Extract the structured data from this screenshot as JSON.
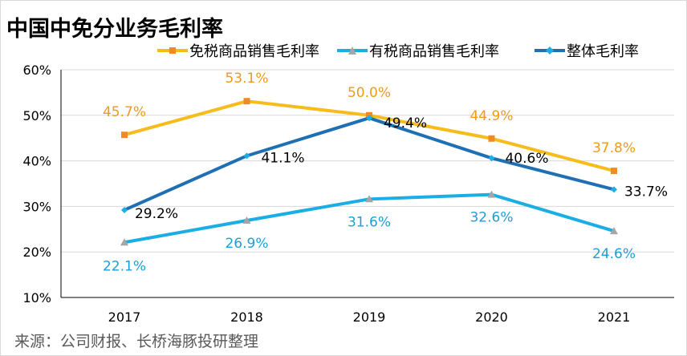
{
  "title": "中国中免分业务毛利率",
  "source": "来源：公司财报、长桥海豚投研整理",
  "colors": {
    "duty_free": "#F5BC1C",
    "duty_free_marker": "#F08A24",
    "duty_free_label": "#F09A1C",
    "dutiable": "#1AAEE5",
    "dutiable_marker": "#A6A6A6",
    "dutiable_label": "#1A9FD6",
    "overall": "#1F6FB4",
    "overall_label": "#000000",
    "grid": "#d9d9d9",
    "axis": "#000000"
  },
  "chart_data": {
    "type": "line",
    "title": "中国中免分业务毛利率",
    "xlabel": "",
    "ylabel": "",
    "x": [
      "2017",
      "2018",
      "2019",
      "2020",
      "2021"
    ],
    "ylim": [
      10,
      60
    ],
    "yticks": [
      10,
      20,
      30,
      40,
      50,
      60
    ],
    "ytick_labels": [
      "10%",
      "20%",
      "30%",
      "40%",
      "50%",
      "60%"
    ],
    "grid": true,
    "legend_position": "top",
    "series": [
      {
        "name": "免税商品销售毛利率",
        "values": [
          45.7,
          53.1,
          50.0,
          44.9,
          37.8
        ],
        "labels": [
          "45.7%",
          "53.1%",
          "50.0%",
          "44.9%",
          "37.8%"
        ],
        "marker": "square"
      },
      {
        "name": "有税商品销售毛利率",
        "values": [
          22.1,
          26.9,
          31.6,
          32.6,
          24.6
        ],
        "labels": [
          "22.1%",
          "26.9%",
          "31.6%",
          "32.6%",
          "24.6%"
        ],
        "marker": "triangle"
      },
      {
        "name": "整体毛利率",
        "values": [
          29.2,
          41.1,
          49.4,
          40.6,
          33.7
        ],
        "labels": [
          "29.2%",
          "41.1%",
          "49.4%",
          "40.6%",
          "33.7%"
        ],
        "marker": "diamond"
      }
    ]
  }
}
